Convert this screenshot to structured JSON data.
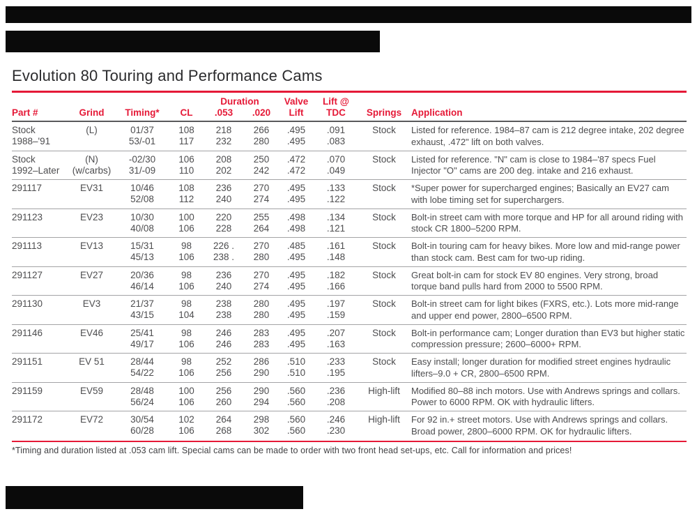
{
  "page": {
    "title": "Evolution 80 Touring and Performance Cams",
    "footnote": "*Timing and duration listed at .053 cam lift. Special cams can be made to order with two front head set-ups, etc. Call for information and prices!"
  },
  "colors": {
    "accent_red": "#e51937",
    "body_text": "#4d4d4f",
    "row_rule_gray": "#a3a3a5",
    "redaction_black": "#0a0a0a"
  },
  "table": {
    "headers": {
      "part": "Part #",
      "grind": "Grind",
      "timing": "Timing*",
      "cl": "CL",
      "duration": "Duration",
      "d053": ".053",
      "d020": ".020",
      "valve_line1": "Valve",
      "valve_line2": "Lift",
      "tdc_line1": "Lift @",
      "tdc_line2": "TDC",
      "springs": "Springs",
      "application": "Application"
    },
    "rows": [
      {
        "part": [
          "Stock",
          "1988–'91"
        ],
        "grind": [
          "(L)",
          ""
        ],
        "timing": [
          "01/37",
          "53/-01"
        ],
        "cl": [
          "108",
          "117"
        ],
        "d053": [
          "218",
          "232"
        ],
        "d020": [
          "266",
          "280"
        ],
        "valve": [
          ".495",
          ".495"
        ],
        "tdc": [
          ".091",
          ".083"
        ],
        "springs": "Stock",
        "application": "Listed for reference. 1984–87 cam is 212 degree intake, 202 degree exhaust, .472\" lift on both valves."
      },
      {
        "part": [
          "Stock",
          "1992–Later"
        ],
        "grind": [
          "(N)",
          "(w/carbs)"
        ],
        "timing": [
          "-02/30",
          "31/-09"
        ],
        "cl": [
          "106",
          "110"
        ],
        "d053": [
          "208",
          "202"
        ],
        "d020": [
          "250",
          "242"
        ],
        "valve": [
          ".472",
          ".472"
        ],
        "tdc": [
          ".070",
          ".049"
        ],
        "springs": "Stock",
        "application": "Listed for reference. \"N\" cam is close to 1984–'87 specs Fuel Injector \"O\" cams are 200 deg. intake and 216 exhaust."
      },
      {
        "part": [
          "291117",
          ""
        ],
        "grind": [
          "EV31",
          ""
        ],
        "timing": [
          "10/46",
          "52/08"
        ],
        "cl": [
          "108",
          "112"
        ],
        "d053": [
          "236",
          "240"
        ],
        "d020": [
          "270",
          "274"
        ],
        "valve": [
          ".495",
          ".495"
        ],
        "tdc": [
          ".133",
          ".122"
        ],
        "springs": "Stock",
        "application": "*Super power for supercharged engines; Basically an EV27 cam with lobe timing set for superchargers."
      },
      {
        "part": [
          "291123",
          ""
        ],
        "grind": [
          "EV23",
          ""
        ],
        "timing": [
          "10/30",
          "40/08"
        ],
        "cl": [
          "100",
          "106"
        ],
        "d053": [
          "220",
          "228"
        ],
        "d020": [
          "255",
          "264"
        ],
        "valve": [
          ".498",
          ".498"
        ],
        "tdc": [
          ".134",
          ".121"
        ],
        "springs": "Stock",
        "application": "Bolt-in street cam with more torque and HP for all around riding with stock CR 1800–5200 RPM."
      },
      {
        "part": [
          "291113",
          ""
        ],
        "grind": [
          "EV13",
          ""
        ],
        "timing": [
          "15/31",
          "45/13"
        ],
        "cl": [
          "98",
          "106"
        ],
        "d053": [
          "226 .",
          "238 ."
        ],
        "d020": [
          "270",
          "280"
        ],
        "valve": [
          ".485",
          ".495"
        ],
        "tdc": [
          ".161",
          ".148"
        ],
        "springs": "Stock",
        "application": "Bolt-in touring cam for heavy bikes. More low and mid-range power than stock cam. Best cam for two-up riding."
      },
      {
        "part": [
          "291127",
          ""
        ],
        "grind": [
          "EV27",
          ""
        ],
        "timing": [
          "20/36",
          "46/14"
        ],
        "cl": [
          "98",
          "106"
        ],
        "d053": [
          "236",
          "240"
        ],
        "d020": [
          "270",
          "274"
        ],
        "valve": [
          ".495",
          ".495"
        ],
        "tdc": [
          ".182",
          ".166"
        ],
        "springs": "Stock",
        "application": "Great bolt-in cam for stock EV 80 engines. Very strong, broad torque band pulls hard from 2000 to 5500 RPM."
      },
      {
        "part": [
          "291130",
          ""
        ],
        "grind": [
          "EV3",
          ""
        ],
        "timing": [
          "21/37",
          "43/15"
        ],
        "cl": [
          "98",
          "104"
        ],
        "d053": [
          "238",
          "238"
        ],
        "d020": [
          "280",
          "280"
        ],
        "valve": [
          ".495",
          ".495"
        ],
        "tdc": [
          ".197",
          ".159"
        ],
        "springs": "Stock",
        "application": "Bolt-in street cam for light bikes (FXRS, etc.). Lots more mid-range and upper end power, 2800–6500 RPM."
      },
      {
        "part": [
          "291146",
          ""
        ],
        "grind": [
          "EV46",
          ""
        ],
        "timing": [
          "25/41",
          "49/17"
        ],
        "cl": [
          "98",
          "106"
        ],
        "d053": [
          "246",
          "246"
        ],
        "d020": [
          "283",
          "283"
        ],
        "valve": [
          ".495",
          ".495"
        ],
        "tdc": [
          ".207",
          ".163"
        ],
        "springs": "Stock",
        "application": "Bolt-in performance cam; Longer duration than EV3 but higher static compression pressure; 2600–6000+ RPM."
      },
      {
        "part": [
          "291151",
          ""
        ],
        "grind": [
          "EV 51",
          ""
        ],
        "timing": [
          "28/44",
          "54/22"
        ],
        "cl": [
          "98",
          "106"
        ],
        "d053": [
          "252",
          "256"
        ],
        "d020": [
          "286",
          "290"
        ],
        "valve": [
          ".510",
          ".510"
        ],
        "tdc": [
          ".233",
          ".195"
        ],
        "springs": "Stock",
        "application": "Easy install; longer duration for modified street engines hydraulic lifters–9.0 + CR, 2800–6500 RPM."
      },
      {
        "part": [
          "291159",
          ""
        ],
        "grind": [
          "EV59",
          ""
        ],
        "timing": [
          "28/48",
          "56/24"
        ],
        "cl": [
          "100",
          "106"
        ],
        "d053": [
          "256",
          "260"
        ],
        "d020": [
          "290",
          "294"
        ],
        "valve": [
          ".560",
          ".560"
        ],
        "tdc": [
          ".236",
          ".208"
        ],
        "springs": "High-lift",
        "application": "Modified 80–88 inch motors. Use with Andrews springs and collars. Power to 6000 RPM. OK with hydraulic lifters."
      },
      {
        "part": [
          "291172",
          ""
        ],
        "grind": [
          "EV72",
          ""
        ],
        "timing": [
          "30/54",
          "60/28"
        ],
        "cl": [
          "102",
          "106"
        ],
        "d053": [
          "264",
          "268"
        ],
        "d020": [
          "298",
          "302"
        ],
        "valve": [
          ".560",
          ".560"
        ],
        "tdc": [
          ".246",
          ".230"
        ],
        "springs": "High-lift",
        "application": "For 92 in.+ street motors. Use with Andrews springs and collars. Broad power, 2800–6000 RPM. OK for hydraulic lifters."
      }
    ]
  }
}
